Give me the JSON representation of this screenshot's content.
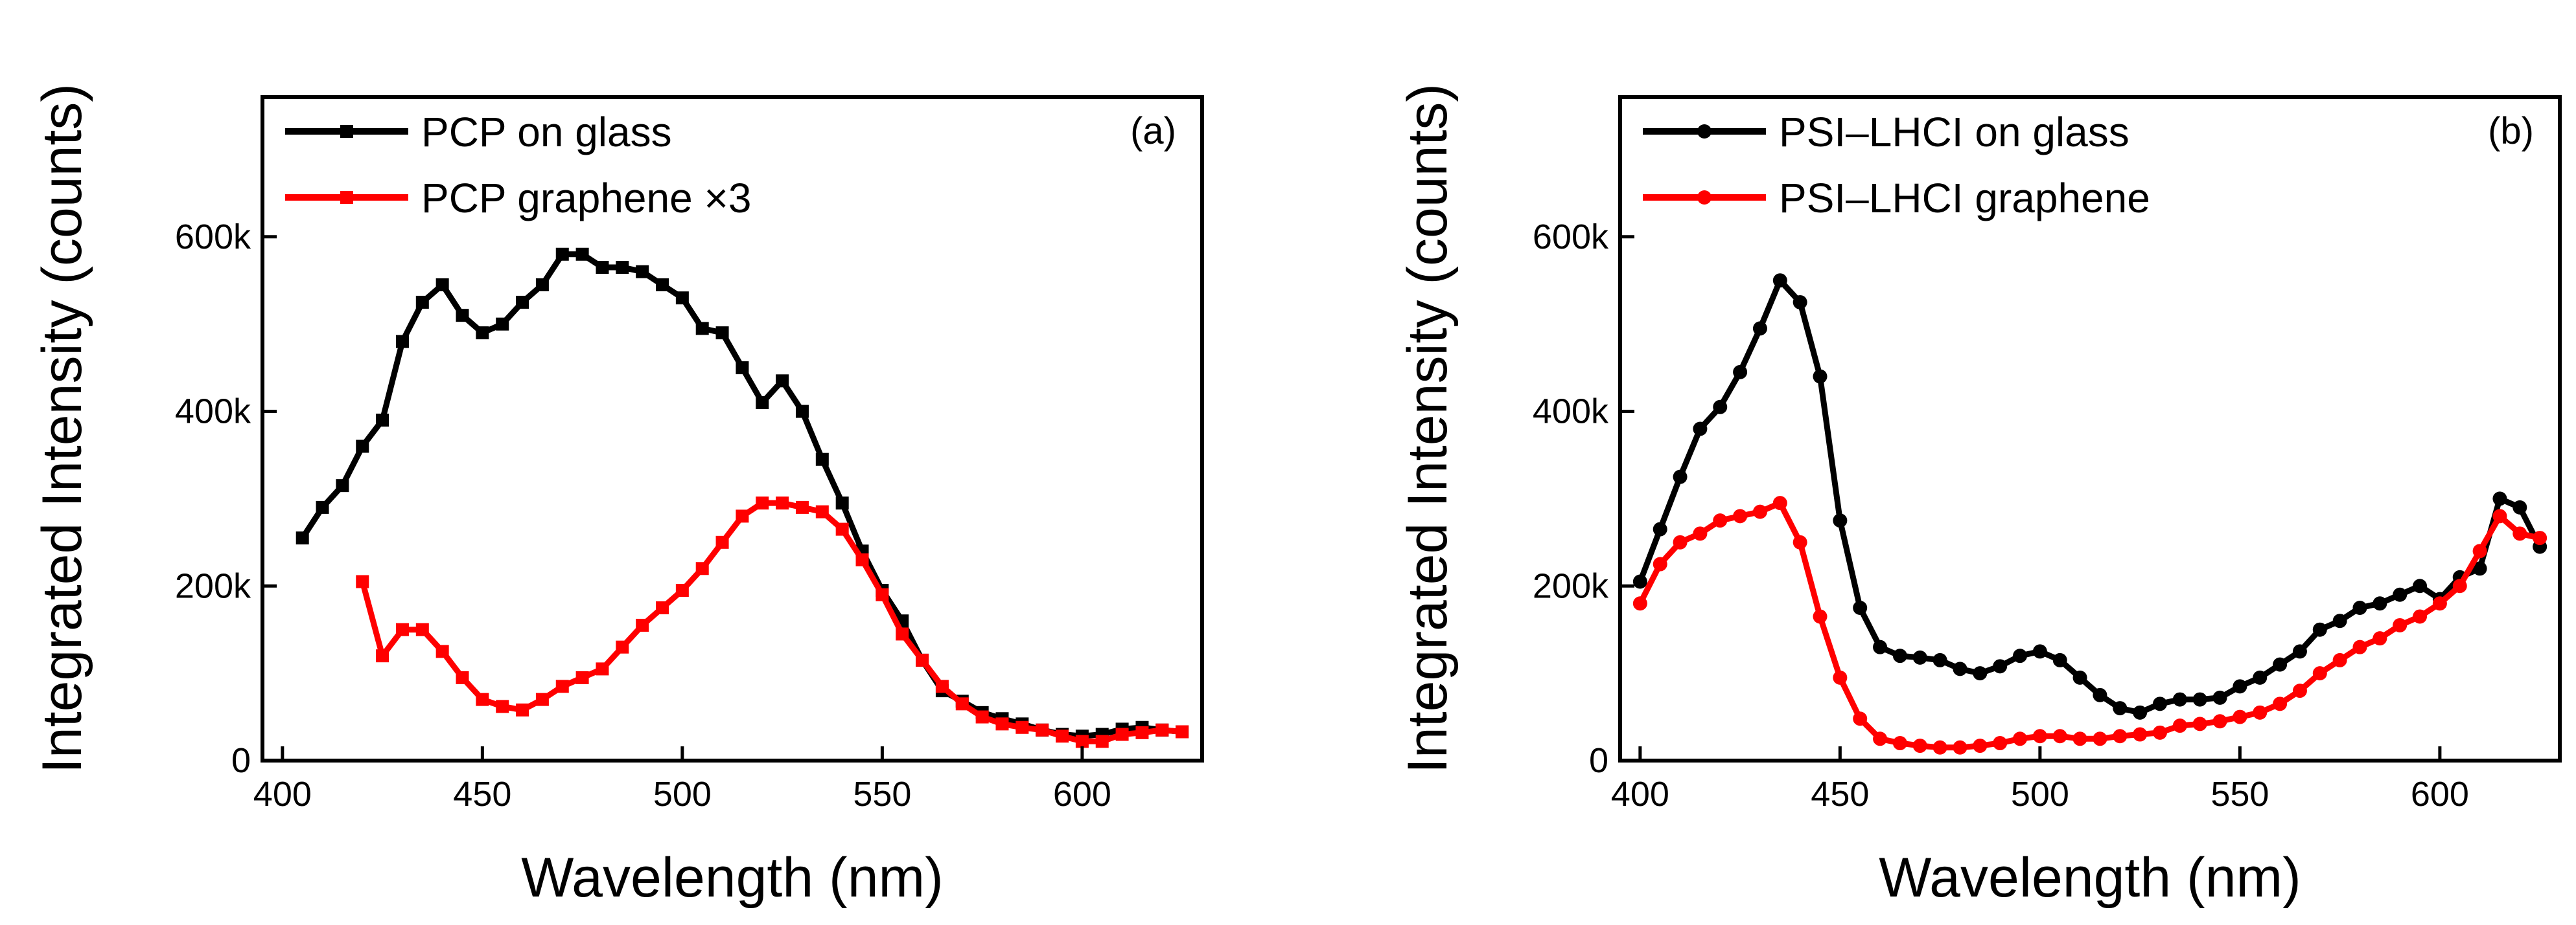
{
  "chart_data": [
    {
      "type": "line",
      "panel_label": "(a)",
      "xlabel": "Wavelength (nm)",
      "ylabel": "Integrated Intensity (counts)",
      "xlim": [
        395,
        630
      ],
      "ylim": [
        0,
        760000
      ],
      "xticks": [
        400,
        450,
        500,
        550,
        600
      ],
      "xtick_labels": [
        "400",
        "450",
        "500",
        "550",
        "600"
      ],
      "yticks": [
        0,
        200000,
        400000,
        600000
      ],
      "ytick_labels": [
        "0",
        "200k",
        "400k",
        "600k"
      ],
      "legend_position": "top-left",
      "marker": "square",
      "series": [
        {
          "name": "PCP on glass",
          "color": "#000000",
          "x": [
            405,
            410,
            415,
            420,
            425,
            430,
            435,
            440,
            445,
            450,
            455,
            460,
            465,
            470,
            475,
            480,
            485,
            490,
            495,
            500,
            505,
            510,
            515,
            520,
            525,
            530,
            535,
            540,
            545,
            550,
            555,
            560,
            565,
            570,
            575,
            580,
            585,
            590,
            595,
            600,
            605,
            610,
            615,
            620,
            625
          ],
          "y": [
            255000,
            290000,
            315000,
            360000,
            390000,
            480000,
            525000,
            545000,
            510000,
            490000,
            500000,
            525000,
            545000,
            580000,
            580000,
            565000,
            565000,
            560000,
            545000,
            530000,
            495000,
            490000,
            450000,
            410000,
            435000,
            400000,
            345000,
            295000,
            240000,
            195000,
            160000,
            115000,
            80000,
            68000,
            55000,
            48000,
            42000,
            35000,
            30000,
            28000,
            30000,
            36000,
            38000,
            35000,
            33000
          ]
        },
        {
          "name": "PCP graphene ×3",
          "color": "#ff0000",
          "x": [
            420,
            425,
            430,
            435,
            440,
            445,
            450,
            455,
            460,
            465,
            470,
            475,
            480,
            485,
            490,
            495,
            500,
            505,
            510,
            515,
            520,
            525,
            530,
            535,
            540,
            545,
            550,
            555,
            560,
            565,
            570,
            575,
            580,
            585,
            590,
            595,
            600,
            605,
            610,
            615,
            620,
            625
          ],
          "y": [
            205000,
            120000,
            150000,
            150000,
            125000,
            95000,
            70000,
            62000,
            58000,
            70000,
            85000,
            95000,
            105000,
            130000,
            155000,
            175000,
            195000,
            220000,
            250000,
            280000,
            295000,
            295000,
            290000,
            285000,
            265000,
            230000,
            190000,
            145000,
            115000,
            85000,
            65000,
            50000,
            42000,
            38000,
            35000,
            28000,
            22000,
            22000,
            30000,
            32000,
            35000,
            33000
          ]
        }
      ]
    },
    {
      "type": "line",
      "panel_label": "(b)",
      "xlabel": "Wavelength (nm)",
      "ylabel": "Integrated Intensity (counts)",
      "xlim": [
        395,
        630
      ],
      "ylim": [
        0,
        760000
      ],
      "xticks": [
        400,
        450,
        500,
        550,
        600
      ],
      "xtick_labels": [
        "400",
        "450",
        "500",
        "550",
        "600"
      ],
      "yticks": [
        0,
        200000,
        400000,
        600000
      ],
      "ytick_labels": [
        "0",
        "200k",
        "400k",
        "600k"
      ],
      "legend_position": "top-left",
      "marker": "circle",
      "series": [
        {
          "name": "PSI–LHCI on glass",
          "color": "#000000",
          "x": [
            400,
            405,
            410,
            415,
            420,
            425,
            430,
            435,
            440,
            445,
            450,
            455,
            460,
            465,
            470,
            475,
            480,
            485,
            490,
            495,
            500,
            505,
            510,
            515,
            520,
            525,
            530,
            535,
            540,
            545,
            550,
            555,
            560,
            565,
            570,
            575,
            580,
            585,
            590,
            595,
            600,
            605,
            610,
            615,
            620,
            625
          ],
          "y": [
            205000,
            265000,
            325000,
            380000,
            405000,
            445000,
            495000,
            550000,
            525000,
            440000,
            275000,
            175000,
            130000,
            120000,
            118000,
            115000,
            105000,
            100000,
            108000,
            120000,
            125000,
            115000,
            95000,
            75000,
            60000,
            55000,
            65000,
            70000,
            70000,
            72000,
            85000,
            95000,
            110000,
            125000,
            150000,
            160000,
            175000,
            180000,
            190000,
            200000,
            185000,
            210000,
            220000,
            300000,
            290000,
            245000
          ]
        },
        {
          "name": "PSI–LHCI graphene",
          "color": "#ff0000",
          "x": [
            400,
            405,
            410,
            415,
            420,
            425,
            430,
            435,
            440,
            445,
            450,
            455,
            460,
            465,
            470,
            475,
            480,
            485,
            490,
            495,
            500,
            505,
            510,
            515,
            520,
            525,
            530,
            535,
            540,
            545,
            550,
            555,
            560,
            565,
            570,
            575,
            580,
            585,
            590,
            595,
            600,
            605,
            610,
            615,
            620,
            625
          ],
          "y": [
            180000,
            225000,
            250000,
            260000,
            275000,
            280000,
            285000,
            295000,
            250000,
            165000,
            95000,
            48000,
            25000,
            20000,
            17000,
            15000,
            15000,
            17000,
            20000,
            25000,
            28000,
            28000,
            25000,
            25000,
            28000,
            30000,
            32000,
            40000,
            42000,
            45000,
            50000,
            55000,
            65000,
            80000,
            100000,
            115000,
            130000,
            140000,
            155000,
            165000,
            180000,
            200000,
            240000,
            280000,
            260000,
            255000
          ]
        }
      ]
    }
  ]
}
